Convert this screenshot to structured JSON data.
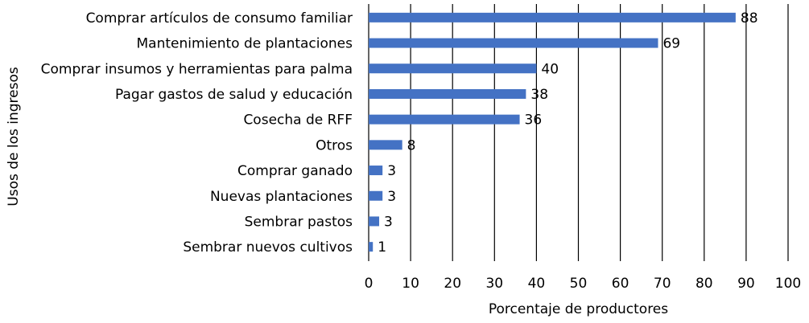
{
  "chart_data": {
    "type": "bar",
    "orientation": "horizontal",
    "title": "",
    "xlabel": "Porcentaje de productores",
    "ylabel": "Usos de los ingresos",
    "categories": [
      "Comprar artículos de consumo familiar",
      "Mantenimiento de plantaciones",
      "Comprar insumos y herramientas para palma",
      "Pagar gastos de salud y educación",
      "Cosecha de RFF",
      "Otros",
      "Comprar ganado",
      "Nuevas plantaciones",
      "Sembrar pastos",
      "Sembrar nuevos cultivos"
    ],
    "values": [
      88,
      69,
      40,
      38,
      36,
      8,
      3,
      3,
      3,
      1
    ],
    "bar_values": [
      87.5,
      69,
      40,
      37.5,
      36,
      8,
      3.3,
      3.3,
      2.5,
      1
    ],
    "xlim": [
      0,
      100
    ],
    "xticks": [
      0,
      10,
      20,
      30,
      40,
      50,
      60,
      70,
      80,
      90,
      100
    ],
    "grid": "vertical",
    "bar_color": "#4472C4",
    "legend": "none"
  }
}
